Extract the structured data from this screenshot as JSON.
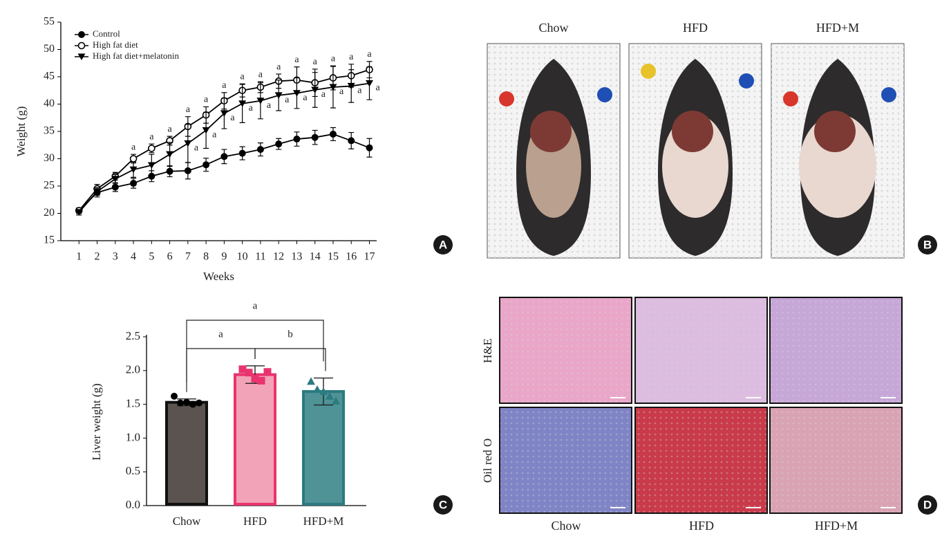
{
  "chart_data": [
    {
      "type": "line",
      "panel_label": "A",
      "xlabel": "Weeks",
      "ylabel": "Weight (g)",
      "x": [
        1,
        2,
        3,
        4,
        5,
        6,
        7,
        8,
        9,
        10,
        11,
        12,
        13,
        14,
        15,
        16,
        17
      ],
      "xlim": [
        0,
        17.4
      ],
      "xticks": [
        1,
        2,
        3,
        4,
        5,
        6,
        7,
        8,
        9,
        10,
        11,
        12,
        13,
        14,
        15,
        16,
        17
      ],
      "ylim": [
        15,
        55
      ],
      "yticks": [
        15,
        20,
        25,
        30,
        35,
        40,
        45,
        50,
        55
      ],
      "legend": "upper left",
      "series": [
        {
          "name": "Control",
          "marker": "circle-filled",
          "color": "#000000",
          "values": [
            20.5,
            23.8,
            24.8,
            25.5,
            26.8,
            27.7,
            27.8,
            28.9,
            30.4,
            31.0,
            31.7,
            32.7,
            33.6,
            33.9,
            34.5,
            33.3,
            32.0
          ],
          "errors": [
            0.5,
            0.8,
            0.8,
            0.9,
            1.0,
            1.0,
            1.5,
            1.2,
            1.3,
            1.2,
            1.2,
            1.0,
            1.3,
            1.3,
            1.2,
            1.5,
            1.7
          ],
          "sig_labels": [
            null,
            null,
            null,
            null,
            null,
            null,
            null,
            null,
            null,
            null,
            null,
            null,
            null,
            null,
            null,
            null,
            null
          ],
          "sig_position": "above"
        },
        {
          "name": "High fat diet",
          "marker": "circle-open",
          "color": "#000000",
          "values": [
            20.5,
            24.5,
            26.8,
            30.0,
            31.9,
            33.3,
            35.9,
            38.0,
            40.6,
            42.5,
            43.1,
            44.2,
            44.4,
            43.9,
            44.8,
            45.2,
            46.3
          ],
          "errors": [
            0.5,
            0.8,
            0.7,
            0.8,
            0.8,
            0.8,
            1.8,
            1.5,
            1.5,
            1.2,
            1.0,
            1.3,
            2.4,
            2.5,
            2.2,
            2.1,
            1.5
          ],
          "sig_labels": [
            null,
            null,
            null,
            "a",
            "a",
            "a",
            "a",
            "a",
            "a",
            "a",
            "a",
            "a",
            "a",
            "a",
            "a",
            "a",
            "a"
          ],
          "sig_position": "above"
        },
        {
          "name": "High fat diet+melatonin",
          "marker": "triangle-down",
          "color": "#000000",
          "values": [
            20.2,
            24.0,
            26.3,
            28.0,
            28.8,
            30.8,
            32.8,
            35.2,
            38.3,
            40.1,
            40.6,
            41.6,
            42.0,
            42.6,
            43.1,
            43.3,
            43.8
          ],
          "errors": [
            0.5,
            0.7,
            0.8,
            1.4,
            2.0,
            2.2,
            3.5,
            3.3,
            2.8,
            3.5,
            3.3,
            2.8,
            2.8,
            3.2,
            3.8,
            3.0,
            3.0
          ],
          "sig_labels": [
            null,
            null,
            null,
            null,
            null,
            null,
            "a",
            "a",
            "a",
            "a",
            "a",
            "a",
            "a",
            "a",
            "a",
            "a",
            "a"
          ],
          "sig_position": "right"
        }
      ]
    },
    {
      "type": "bar",
      "panel_label": "C",
      "ylabel": "Liver weight (g)",
      "categories": [
        "Chow",
        "HFD",
        "HFD+M"
      ],
      "values": [
        1.53,
        1.94,
        1.69
      ],
      "errors": [
        0.05,
        0.13,
        0.2
      ],
      "points": [
        [
          1.62,
          1.52,
          1.53,
          1.5,
          1.52
        ],
        [
          2.02,
          1.97,
          1.88,
          1.85,
          1.98
        ],
        [
          1.84,
          1.72,
          1.69,
          1.62,
          1.55
        ]
      ],
      "markers": [
        "circle",
        "square",
        "triangle"
      ],
      "colors": [
        "#5b5350",
        "#f3a3b8",
        "#4f9397"
      ],
      "edge_colors": [
        "#111111",
        "#e8336e",
        "#2b7b80"
      ],
      "point_colors": [
        "#000000",
        "#e8336e",
        "#2b7b80"
      ],
      "ylim": [
        0,
        2.5
      ],
      "yticks": [
        {
          "value": 0,
          "label": "0.0"
        },
        0.5,
        {
          "value": 1,
          "label": "1.0"
        },
        1.5,
        {
          "value": 2,
          "label": "2.0"
        },
        2.5
      ],
      "comparisons": [
        {
          "pair": [
            "Chow",
            "HFD"
          ],
          "label": "a"
        },
        {
          "pair": [
            "HFD",
            "HFD+M"
          ],
          "label": "b"
        },
        {
          "pair": [
            "Chow",
            "HFD+M"
          ],
          "label": "a"
        }
      ]
    }
  ],
  "figure_panels": [
    {
      "panel_label": "B",
      "columns": [
        "Chow",
        "HFD",
        "HFD+M"
      ]
    },
    {
      "panel_label": "D",
      "columns": [
        "Chow",
        "HFD",
        "HFD+M"
      ],
      "rows": [
        "H&E",
        "Oil red O"
      ]
    }
  ]
}
